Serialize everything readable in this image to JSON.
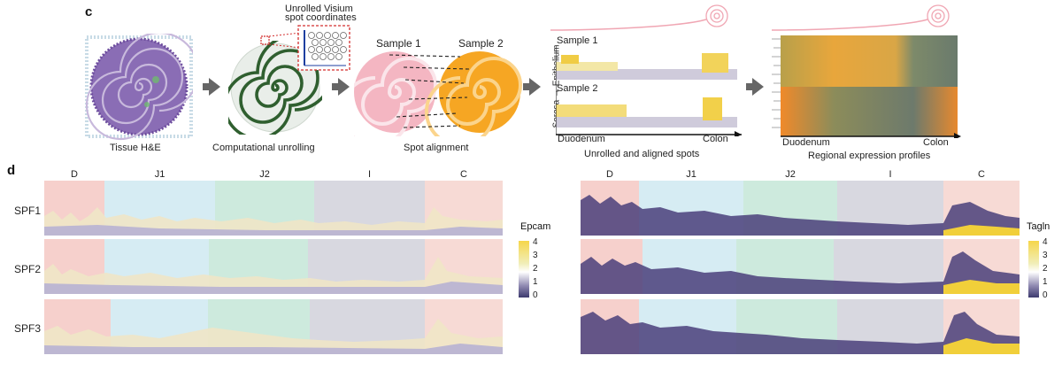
{
  "panel_c": {
    "label": "c",
    "step1_caption": "Tissue H&E",
    "step2_caption": "Computational unrolling",
    "inset_title_line1": "Unrolled Visium",
    "inset_title_line2": "spot coordinates",
    "step3_caption": "Spot alignment",
    "sample1_label": "Sample 1",
    "sample2_label": "Sample 2",
    "step4_caption": "Unrolled and aligned spots",
    "step4_sample1": "Sample 1",
    "step4_sample2": "Sample 2",
    "y_axis_label": "Serosa → Epithelium",
    "x_start": "Duodenum",
    "x_end": "Colon",
    "step5_caption": "Regional expression profiles",
    "step5_x_start": "Duodenum",
    "step5_x_end": "Colon"
  },
  "panel_d": {
    "label": "d",
    "regions": [
      "D",
      "J1",
      "J2",
      "I",
      "C"
    ],
    "samples": [
      "SPF1",
      "SPF2",
      "SPF3"
    ],
    "left_gene": "Epcam",
    "right_gene": "Tagln",
    "scale_ticks": [
      "4",
      "3",
      "2",
      "1",
      "0"
    ]
  },
  "colors": {
    "region_D": "#f6d0cc",
    "region_J1": "#d6ecf3",
    "region_J2": "#cdeadd",
    "region_I": "#d8d8e0",
    "region_C": "#f7dad5",
    "pink_sample": "#f4b6c2",
    "orange_sample": "#f6a623",
    "arrow": "#666666"
  }
}
